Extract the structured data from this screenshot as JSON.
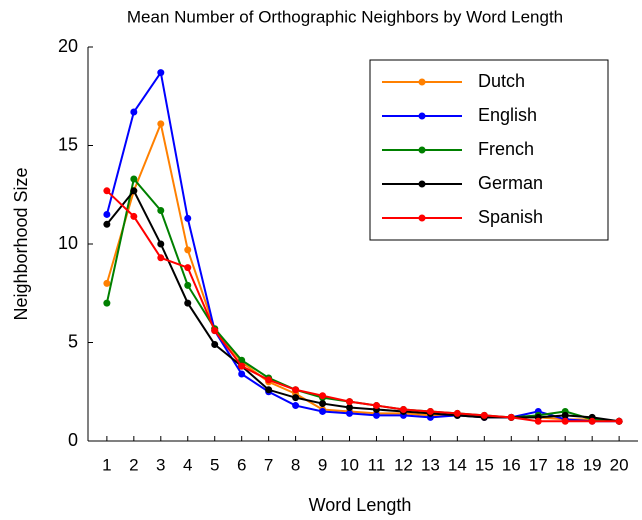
{
  "chart_data": {
    "type": "line",
    "title": "Mean Number of Orthographic Neighbors by Word Length",
    "x_label": "Word Length",
    "y_label": "Neighborhood Size",
    "x": [
      1,
      2,
      3,
      4,
      5,
      6,
      7,
      8,
      9,
      10,
      11,
      12,
      13,
      14,
      15,
      16,
      17,
      18,
      19,
      20
    ],
    "series": [
      {
        "name": "Dutch",
        "color": "#ff8000",
        "values": [
          8.0,
          12.7,
          16.1,
          9.7,
          5.7,
          4.0,
          3.0,
          2.4,
          1.6,
          1.5,
          1.4,
          1.4,
          1.3,
          1.3,
          1.2,
          1.2,
          1.2,
          1.1,
          1.1,
          1.0
        ]
      },
      {
        "name": "English",
        "color": "#0000ff",
        "values": [
          11.5,
          16.7,
          18.7,
          11.3,
          5.6,
          3.4,
          2.5,
          1.8,
          1.5,
          1.4,
          1.3,
          1.3,
          1.2,
          1.3,
          1.2,
          1.2,
          1.5,
          1.1,
          1.0,
          1.0
        ]
      },
      {
        "name": "French",
        "color": "#008000",
        "values": [
          7.0,
          13.3,
          11.7,
          7.9,
          5.7,
          4.1,
          3.2,
          2.6,
          2.2,
          2.0,
          1.8,
          1.6,
          1.5,
          1.4,
          1.3,
          1.2,
          1.3,
          1.5,
          1.1,
          1.0
        ]
      },
      {
        "name": "German",
        "color": "#000000",
        "values": [
          11.0,
          12.7,
          10.0,
          7.0,
          4.9,
          3.8,
          2.6,
          2.2,
          1.9,
          1.7,
          1.6,
          1.5,
          1.4,
          1.3,
          1.2,
          1.2,
          1.2,
          1.3,
          1.2,
          1.0
        ]
      },
      {
        "name": "Spanish",
        "color": "#ff0000",
        "values": [
          12.7,
          11.4,
          9.3,
          8.8,
          5.6,
          3.8,
          3.1,
          2.6,
          2.3,
          2.0,
          1.8,
          1.6,
          1.5,
          1.4,
          1.3,
          1.2,
          1.0,
          1.0,
          1.0,
          1.0
        ]
      }
    ],
    "xlim": [
      0.3,
      20.7
    ],
    "xticks": [
      1,
      2,
      3,
      4,
      5,
      6,
      7,
      8,
      9,
      10,
      11,
      12,
      13,
      14,
      15,
      16,
      17,
      18,
      19,
      20
    ],
    "ylim": [
      0,
      20
    ],
    "yticks": [
      0,
      5,
      10,
      15,
      20
    ],
    "legend": "upper right",
    "grid": false
  }
}
